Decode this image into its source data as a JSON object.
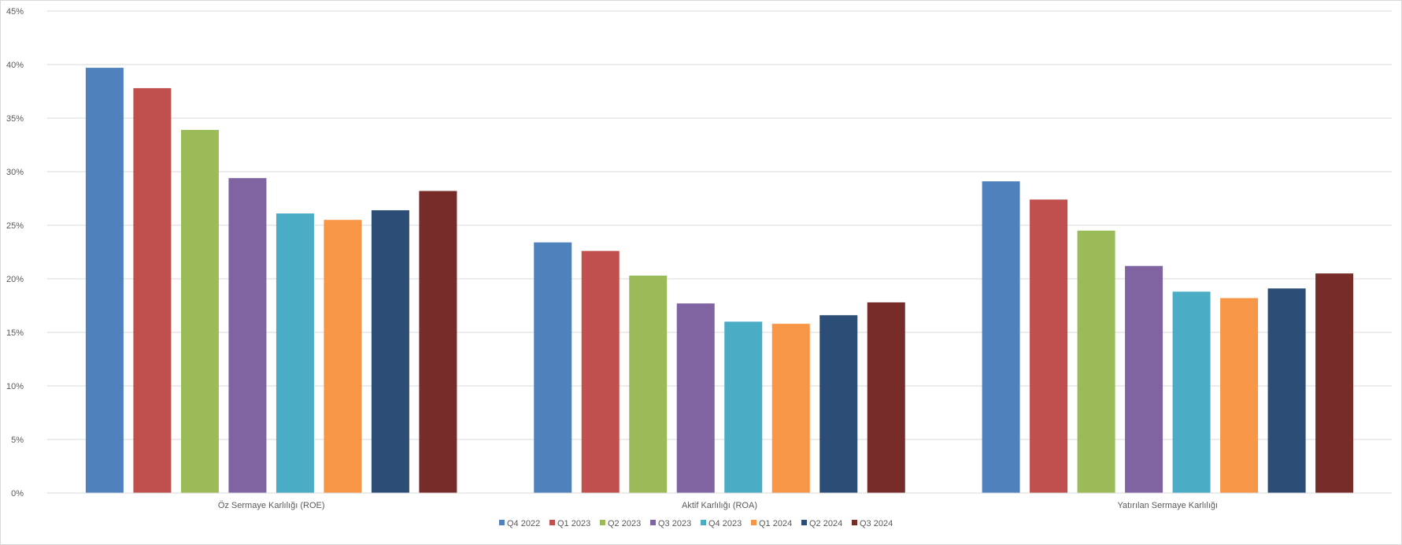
{
  "chart_data": {
    "type": "bar",
    "categories": [
      "Öz Sermaye Karlılığı (ROE)",
      "Aktif Karlılığı (ROA)",
      "Yatırılan Sermaye Karlılığı"
    ],
    "series": [
      {
        "name": "Q4 2022",
        "color": "#4F81BD",
        "values": [
          39.7,
          23.4,
          29.1
        ]
      },
      {
        "name": "Q1 2023",
        "color": "#C0504D",
        "values": [
          37.8,
          22.6,
          27.4
        ]
      },
      {
        "name": "Q2 2023",
        "color": "#9BBB59",
        "values": [
          33.9,
          20.3,
          24.5
        ]
      },
      {
        "name": "Q3 2023",
        "color": "#8064A2",
        "values": [
          29.4,
          17.7,
          21.2
        ]
      },
      {
        "name": "Q4 2023",
        "color": "#4BACC6",
        "values": [
          26.1,
          16.0,
          18.8
        ]
      },
      {
        "name": "Q1 2024",
        "color": "#F79646",
        "values": [
          25.5,
          15.8,
          18.2
        ]
      },
      {
        "name": "Q2 2024",
        "color": "#2C4D75",
        "values": [
          26.4,
          16.6,
          19.1
        ]
      },
      {
        "name": "Q3 2024",
        "color": "#772C2A",
        "values": [
          28.2,
          17.8,
          20.5
        ]
      }
    ],
    "y_ticks": [
      "0%",
      "5%",
      "10%",
      "15%",
      "20%",
      "25%",
      "30%",
      "35%",
      "40%",
      "45%"
    ],
    "ylim": [
      0,
      45
    ],
    "grid": true,
    "legend_position": "bottom"
  }
}
